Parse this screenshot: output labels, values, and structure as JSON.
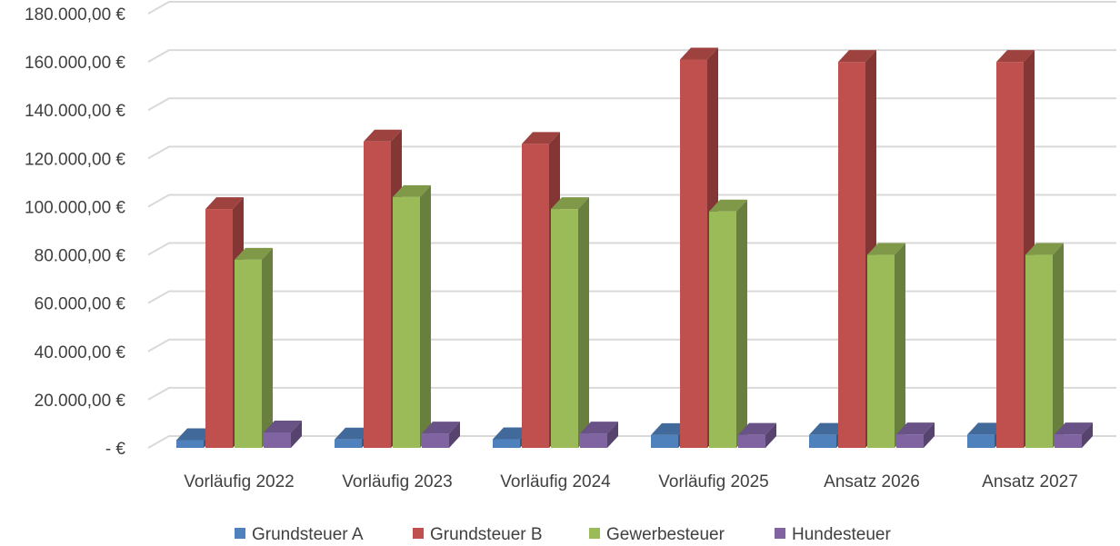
{
  "chart_data": {
    "type": "bar",
    "style": "3d-clustered-column",
    "categories": [
      "Vorläufig 2022",
      "Vorläufig 2023",
      "Vorläufig 2024",
      "Vorläufig 2025",
      "Ansatz 2026",
      "Ansatz 2027"
    ],
    "series": [
      {
        "name": "Grundsteuer A",
        "color": "#4f81bd",
        "values": [
          3200,
          3500,
          3600,
          5300,
          5400,
          5500
        ]
      },
      {
        "name": "Grundsteuer B",
        "color": "#c0504d",
        "values": [
          99000,
          127000,
          126000,
          161000,
          160000,
          160000
        ]
      },
      {
        "name": "Gewerbesteuer",
        "color": "#9bbb59",
        "values": [
          78000,
          104000,
          99000,
          98000,
          80000,
          80000
        ]
      },
      {
        "name": "Hundesteuer",
        "color": "#8064a2",
        "values": [
          6400,
          6000,
          6000,
          5400,
          5600,
          5600
        ]
      }
    ],
    "y_ticks": [
      "-   €",
      "20.000,00 €",
      "40.000,00 €",
      "60.000,00 €",
      "80.000,00 €",
      "100.000,00 €",
      "120.000,00 €",
      "140.000,00 €",
      "160.000,00 €",
      "180.000,00 €"
    ],
    "ylim": [
      0,
      180000
    ],
    "grid": true,
    "legend_position": "bottom"
  }
}
